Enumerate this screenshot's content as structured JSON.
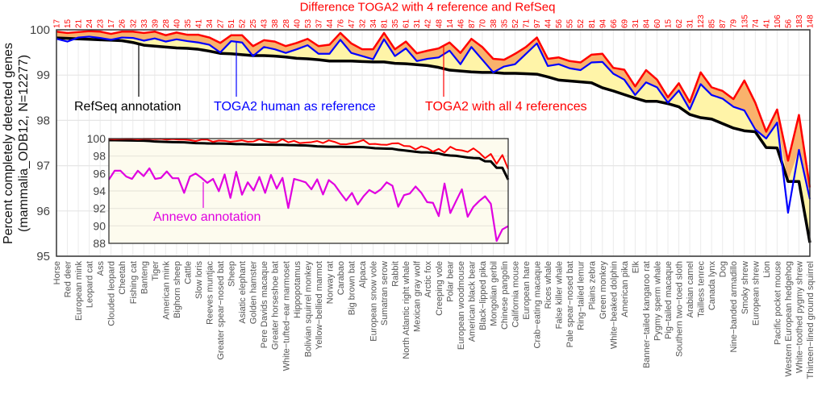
{
  "chart_data": {
    "type": "line",
    "title": "Difference TOGA2 with 4 reference and RefSeq",
    "ylabel": [
      "Percent completely detected genes",
      "(mammalia_ODB12, N=12277)"
    ],
    "ylim": [
      95,
      100
    ],
    "yticks": [
      "95",
      "96",
      "97",
      "98",
      "99",
      "100"
    ],
    "grid": true,
    "colors": {
      "refseq": "#000000",
      "toga2_human": "#0000ff",
      "toga2_all4": "#ff0000",
      "annevo": "#e000e0",
      "fill_human": "#fff4a8",
      "fill_all4": "#f9b26c",
      "inset_bg": "#fdfbee"
    },
    "categories": [
      "Horse",
      "Red deer",
      "European mink",
      "Leopard cat",
      "Ass",
      "Clouded leopard",
      "Cheetah",
      "Fishing cat",
      "Banteng",
      "Tiger",
      "American mink",
      "Bighorn sheep",
      "Cattle",
      "Slow loris",
      "Reeves muntjac",
      "Greater spear−nosed bat",
      "Sheep",
      "Asiatic elephant",
      "Golden hamster",
      "Pere Davids macaque",
      "Greater horseshoe bat",
      "White−tufted−ear marmoset",
      "Hippopotamus",
      "Bolivian squirrel monkey",
      "Yellow−bellied marmot",
      "Norway rat",
      "Carabao",
      "Big brown bat",
      "Alpaca",
      "European snow vole",
      "Sumatran serow",
      "Rabbit",
      "North Atlantic right whale",
      "Mexican gray wolf",
      "Arctic fox",
      "Creeping vole",
      "Polar bear",
      "European woodmouse",
      "American black bear",
      "Black−lipped pika",
      "Mongolian gerbil",
      "Chinese pangolin",
      "California mouse",
      "European hare",
      "Crab−eating macaque",
      "Rices whale",
      "False killer whale",
      "Pale spear−nosed bat",
      "Ring−tailed lemur",
      "Plains zebra",
      "Green monkey",
      "White−beaked dolphin",
      "American pika",
      "Elk",
      "Banner−tailed kangaroo rat",
      "Pygmy sperm whale",
      "Pig−tailed macaque",
      "Southern two−toed sloth",
      "Arabian camel",
      "Tailless tenrec",
      "Canada lynx",
      "Dog",
      "Nine−banded armadillo",
      "Smoky shrew",
      "European shrew",
      "Lion",
      "Pacific pocket mouse",
      "Western European hedgehog",
      "White−toothed pygmy shrew",
      "Thirteen−lined ground squirrel"
    ],
    "difference_counts": [
      "17",
      "15",
      "21",
      "24",
      "23",
      "17",
      "26",
      "32",
      "33",
      "39",
      "28",
      "40",
      "35",
      "41",
      "34",
      "27",
      "51",
      "52",
      "25",
      "43",
      "38",
      "28",
      "40",
      "53",
      "37",
      "44",
      "76",
      "47",
      "32",
      "34",
      "81",
      "35",
      "61",
      "31",
      "42",
      "48",
      "14",
      "46",
      "87",
      "70",
      "38",
      "35",
      "52",
      "71",
      "97",
      "44",
      "56",
      "55",
      "52",
      "81",
      "94",
      "66",
      "69",
      "31",
      "84",
      "60",
      "15",
      "62",
      "31",
      "123",
      "85",
      "87",
      "79",
      "135",
      "74",
      "41",
      "106",
      "56",
      "183",
      "148"
    ],
    "series": [
      {
        "name": "RefSeq annotation",
        "key": "refseq",
        "values": [
          99.82,
          99.81,
          99.8,
          99.79,
          99.78,
          99.77,
          99.76,
          99.72,
          99.66,
          99.64,
          99.62,
          99.6,
          99.59,
          99.57,
          99.53,
          99.48,
          99.47,
          99.45,
          99.43,
          99.43,
          99.42,
          99.4,
          99.37,
          99.36,
          99.34,
          99.31,
          99.31,
          99.31,
          99.3,
          99.29,
          99.29,
          99.26,
          99.25,
          99.23,
          99.21,
          99.17,
          99.11,
          99.09,
          99.07,
          99.06,
          99.06,
          99.04,
          99.04,
          99.03,
          99.02,
          98.96,
          98.89,
          98.87,
          98.85,
          98.83,
          98.72,
          98.65,
          98.57,
          98.49,
          98.42,
          98.42,
          98.37,
          98.3,
          98.13,
          98.06,
          98.03,
          97.93,
          97.83,
          97.77,
          97.75,
          97.4,
          97.39,
          96.65,
          96.65,
          95.3
        ]
      },
      {
        "name": "TOGA2 human as reference",
        "key": "toga2_human",
        "values": [
          99.8,
          99.74,
          99.83,
          99.85,
          99.82,
          99.78,
          99.83,
          99.82,
          99.76,
          99.81,
          99.74,
          99.79,
          99.75,
          99.72,
          99.67,
          99.5,
          99.75,
          99.72,
          99.42,
          99.62,
          99.57,
          99.49,
          99.57,
          99.66,
          99.47,
          99.47,
          99.78,
          99.49,
          99.42,
          99.35,
          99.79,
          99.42,
          99.59,
          99.31,
          99.36,
          99.39,
          99.54,
          99.24,
          99.62,
          99.34,
          99.06,
          99.19,
          99.24,
          99.47,
          99.7,
          99.2,
          99.24,
          99.15,
          99.11,
          99.28,
          99.29,
          99.03,
          98.9,
          98.56,
          98.84,
          98.73,
          98.39,
          98.66,
          98.24,
          98.8,
          98.56,
          98.48,
          98.3,
          98.22,
          97.8,
          97.6,
          97.95,
          95.96,
          97.35,
          96.26
        ]
      },
      {
        "name": "TOGA2 with all 4 references",
        "key": "toga2_all4",
        "values": [
          99.96,
          99.93,
          99.95,
          99.97,
          99.96,
          99.91,
          99.96,
          99.96,
          99.93,
          99.96,
          99.88,
          99.94,
          99.89,
          99.89,
          99.83,
          99.71,
          99.88,
          99.88,
          99.64,
          99.77,
          99.74,
          99.64,
          99.71,
          99.8,
          99.64,
          99.67,
          99.93,
          99.7,
          99.57,
          99.57,
          99.93,
          99.57,
          99.74,
          99.48,
          99.54,
          99.59,
          99.72,
          99.49,
          99.8,
          99.62,
          99.36,
          99.34,
          99.47,
          99.62,
          99.83,
          99.36,
          99.39,
          99.31,
          99.28,
          99.45,
          99.47,
          99.16,
          99.12,
          98.75,
          99.11,
          98.9,
          98.51,
          98.82,
          98.4,
          99.06,
          98.73,
          98.65,
          98.47,
          98.88,
          98.39,
          97.75,
          98.24,
          97.11,
          98.12,
          96.52
        ]
      }
    ],
    "inset": {
      "ylim": [
        88,
        100
      ],
      "yticks": [
        "88",
        "90",
        "92",
        "94",
        "96",
        "98",
        "100"
      ],
      "series_name": "Annevo annotation",
      "annevo_values": [
        95.3,
        96.32,
        96.32,
        95.65,
        95.38,
        96.32,
        95.7,
        96.59,
        95.38,
        95.5,
        96.24,
        95.46,
        95.46,
        93.78,
        95.65,
        96.0,
        95.5,
        94.93,
        95.38,
        93.97,
        95.89,
        93.2,
        96.19,
        93.57,
        94.99,
        94.05,
        95.6,
        93.78,
        95.84,
        94.27,
        95.5,
        92.05,
        95.38,
        95.2,
        94.99,
        94.19,
        95.33,
        93.6,
        95.25,
        94.72,
        93.78,
        92.91,
        93.78,
        92.45,
        93.39,
        94.11,
        93.73,
        94.19,
        94.99,
        94.59,
        92.19,
        93.52,
        93.71,
        94.51,
        93.78,
        92.72,
        92.64,
        91.12,
        94.85,
        91.47,
        92.85,
        94.19,
        91.04,
        92.19,
        92.85,
        93.39,
        92.53,
        88.27,
        89.6,
        89.97
      ]
    }
  }
}
